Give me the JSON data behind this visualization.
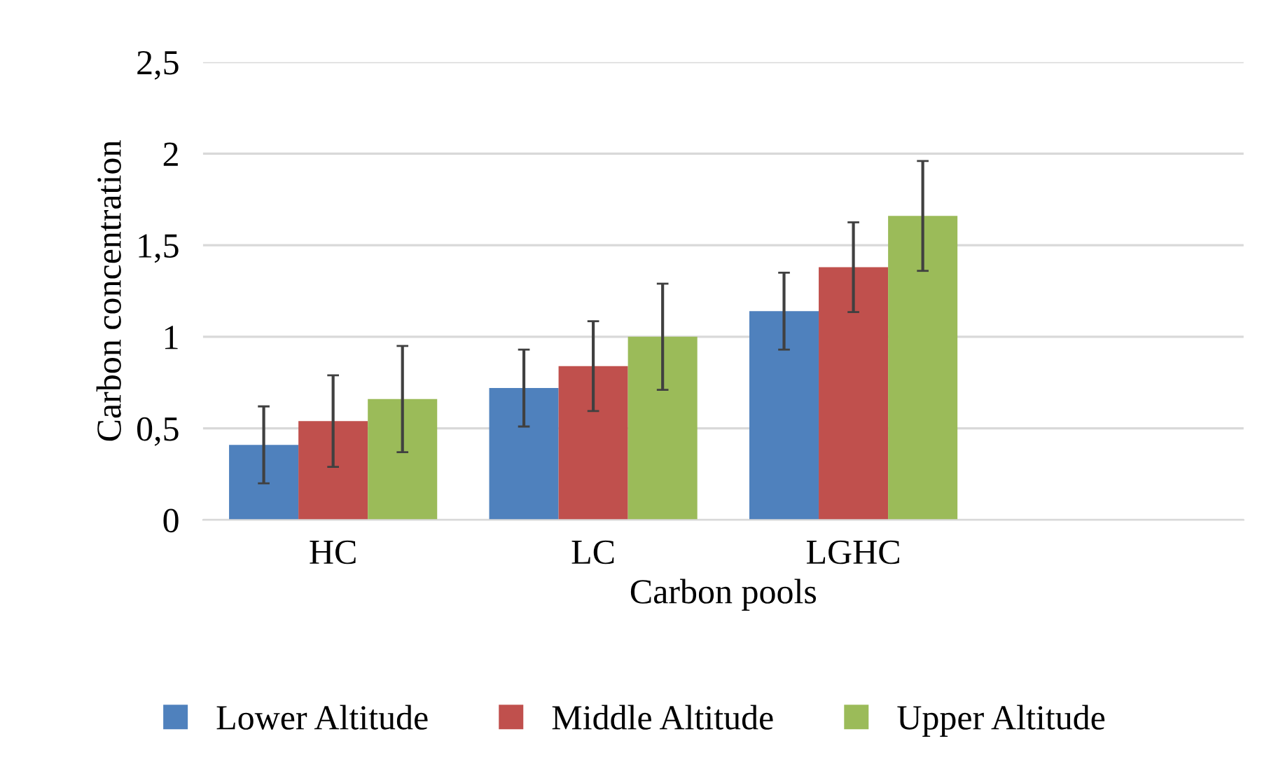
{
  "chart_data": {
    "type": "bar",
    "xlabel": "Carbon pools",
    "ylabel": "Carbon concentration",
    "categories": [
      "HC",
      "LC",
      "LGHC",
      null
    ],
    "series": [
      {
        "name": "Lower Altitude",
        "color": "#4f81bd",
        "values": [
          0.41,
          0.72,
          1.14,
          null
        ],
        "errors": [
          0.21,
          0.21,
          0.21,
          null
        ]
      },
      {
        "name": "Middle Altitude",
        "color": "#c0504d",
        "values": [
          0.54,
          0.84,
          1.38,
          null
        ],
        "errors": [
          0.25,
          0.245,
          0.245,
          null
        ]
      },
      {
        "name": "Upper Altitude",
        "color": "#9bbb59",
        "values": [
          0.66,
          1.0,
          1.66,
          null
        ],
        "errors": [
          0.29,
          0.29,
          0.3,
          null
        ]
      }
    ],
    "ylim": [
      0,
      2.5
    ],
    "yticks": [
      0,
      {
        "value": 0.5,
        "label": "0,5"
      },
      1,
      {
        "value": 1.5,
        "label": "1,5"
      },
      2,
      {
        "value": 2.5,
        "label": "2,5"
      }
    ],
    "grid": "y",
    "legend": "bottom"
  }
}
